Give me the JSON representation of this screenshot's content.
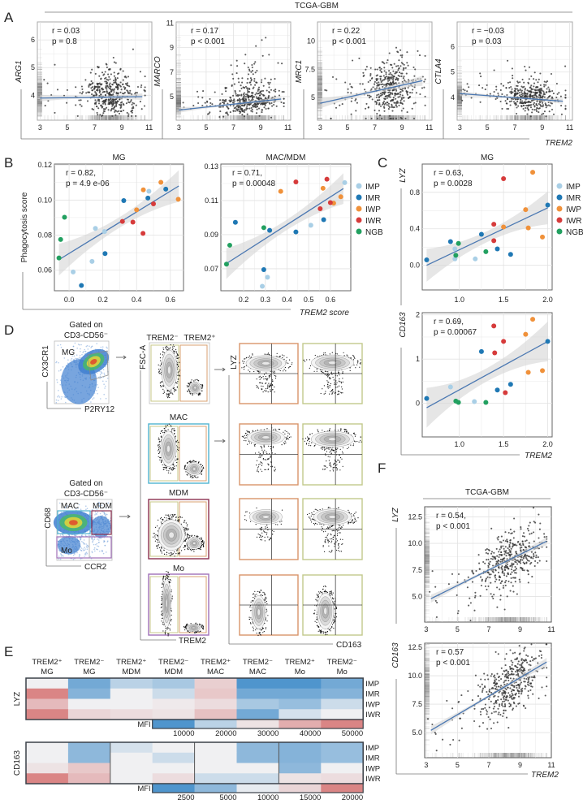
{
  "figure": {
    "panel_labels": [
      "A",
      "B",
      "C",
      "D",
      "E",
      "F"
    ]
  },
  "legend": {
    "groups": [
      {
        "label": "IMP",
        "color": "#a9cfe6"
      },
      {
        "label": "IMR",
        "color": "#1f78b4"
      },
      {
        "label": "IWP",
        "color": "#f0913a"
      },
      {
        "label": "IWR",
        "color": "#d63b3b"
      },
      {
        "label": "NGB",
        "color": "#22a060"
      }
    ]
  },
  "colors": {
    "trend": "#2f64a8",
    "band": "#d6d6d6",
    "heat_low": "#3d8bc9",
    "heat_mid": "#f0f0f2",
    "heat_high": "#d46a6a"
  },
  "panel_a": {
    "title": "TCGA-GBM",
    "xlabel": "TREM2"
  },
  "panel_b": {
    "xlabel": "TREM2 score",
    "ylabel": "Phagocytosis score"
  },
  "panel_c": {
    "xlabel": "TREM2"
  },
  "panel_f": {
    "title": "TCGA-GBM",
    "xlabel": "TREM2"
  },
  "chart_data": [
    {
      "id": "A-ARG1",
      "type": "scatter",
      "xlabel": "TREM2",
      "ylabel": "ARG1",
      "r": "r = 0.03",
      "p": "p = 0.8",
      "xlim": [
        2.8,
        11.2
      ],
      "ylim": [
        3.1,
        6.65
      ],
      "xticks": [
        "3",
        "5",
        "7",
        "9",
        "11"
      ],
      "yticks": [
        "4",
        "5",
        "6"
      ],
      "trend": [
        [
          3,
          3.9
        ],
        [
          10.5,
          3.95
        ]
      ],
      "band": 0.08,
      "point_cloud": {
        "x_mean": 8.3,
        "x_sd": 1.0,
        "y_sd": 0.35,
        "y_skew": 0.6
      }
    },
    {
      "id": "A-MARCO",
      "type": "scatter",
      "xlabel": "TREM2",
      "ylabel": "MARCO",
      "r": "r = 0.17",
      "p": "p < 0.001",
      "xlim": [
        2.8,
        11.2
      ],
      "ylim": [
        3.07,
        11.1
      ],
      "xticks": [
        "3",
        "5",
        "7",
        "9",
        "11"
      ],
      "yticks": [
        "5",
        "7",
        "9",
        "11"
      ],
      "trend": [
        [
          3,
          3.9
        ],
        [
          10.5,
          4.8
        ]
      ],
      "band": 0.15,
      "point_cloud": {
        "x_mean": 8.3,
        "x_sd": 1.0,
        "y_sd": 0.45,
        "y_skew": 1.8
      }
    },
    {
      "id": "A-MRC1",
      "type": "scatter",
      "xlabel": "TREM2",
      "ylabel": "MRC1",
      "r": "r = 0.22",
      "p": "p < 0.001",
      "xlim": [
        2.8,
        11.2
      ],
      "ylim": [
        3.0,
        11.7
      ],
      "xticks": [
        "3",
        "5",
        "7",
        "9",
        "11"
      ],
      "yticks": [
        "5",
        "7.5",
        "10"
      ],
      "trend": [
        [
          3,
          4.5
        ],
        [
          10.5,
          6.5
        ]
      ],
      "band": 0.3,
      "point_cloud": {
        "x_mean": 8.3,
        "x_sd": 1.0,
        "y_sd": 1.4,
        "y_skew": 0
      }
    },
    {
      "id": "A-CTLA4",
      "type": "scatter",
      "xlabel": "TREM2",
      "ylabel": "CTLA4",
      "r": "r = −0.03",
      "p": "p = 0.03",
      "xlim": [
        2.8,
        11.2
      ],
      "ylim": [
        3.1,
        6.98
      ],
      "xticks": [
        "3",
        "5",
        "7",
        "9",
        "11"
      ],
      "yticks": [
        "4",
        "5",
        "6"
      ],
      "trend": [
        [
          3,
          4.15
        ],
        [
          10.5,
          3.85
        ]
      ],
      "band": 0.07,
      "point_cloud": {
        "x_mean": 8.3,
        "x_sd": 1.0,
        "y_sd": 0.28,
        "y_skew": 0.4
      }
    },
    {
      "id": "B-MG",
      "type": "scatter",
      "title": "MG",
      "xlabel": "TREM2 score",
      "ylabel": "Phagocytosis score",
      "r": "r = 0.82,",
      "p": "p = 4.9 e-06",
      "xlim": [
        -0.087,
        0.678
      ],
      "ylim": [
        0.0483,
        0.1205
      ],
      "xticks": [
        "0.0",
        "0.2",
        "0.4",
        "0.6"
      ],
      "yticks": [
        "0.06",
        "0.08",
        "0.10",
        "0.12"
      ],
      "trend": [
        [
          -0.06,
          0.066
        ],
        [
          0.65,
          0.108
        ]
      ],
      "band": 0.006,
      "points": [
        {
          "g": "NGB",
          "x": -0.06,
          "y": 0.067
        },
        {
          "g": "NGB",
          "x": -0.05,
          "y": 0.0775
        },
        {
          "g": "NGB",
          "x": -0.027,
          "y": 0.0902
        },
        {
          "g": "IMP",
          "x": 0.024,
          "y": 0.059
        },
        {
          "g": "IMP",
          "x": 0.136,
          "y": 0.065
        },
        {
          "g": "IMP",
          "x": 0.156,
          "y": 0.0838
        },
        {
          "g": "IMP",
          "x": 0.473,
          "y": 0.105
        },
        {
          "g": "IMP",
          "x": 0.21,
          "y": 0.082
        },
        {
          "g": "IMR",
          "x": 0.073,
          "y": 0.0513
        },
        {
          "g": "IMR",
          "x": 0.213,
          "y": 0.0695
        },
        {
          "g": "IMR",
          "x": 0.324,
          "y": 0.0997
        },
        {
          "g": "IMR",
          "x": 0.467,
          "y": 0.1011
        },
        {
          "g": "IMR",
          "x": 0.573,
          "y": 0.1062
        },
        {
          "g": "IWP",
          "x": 0.44,
          "y": 0.1058
        },
        {
          "g": "IWP",
          "x": 0.4,
          "y": 0.0944
        },
        {
          "g": "IWP",
          "x": 0.544,
          "y": 0.1101
        },
        {
          "g": "IWP",
          "x": 0.647,
          "y": 0.1004
        },
        {
          "g": "IWR",
          "x": 0.316,
          "y": 0.0878
        },
        {
          "g": "IWR",
          "x": 0.378,
          "y": 0.0874
        },
        {
          "g": "IWR",
          "x": 0.438,
          "y": 0.081
        },
        {
          "g": "IWR",
          "x": 0.5,
          "y": 0.0978
        }
      ]
    },
    {
      "id": "B-MAC-MDM",
      "type": "scatter",
      "title": "MAC/MDM",
      "xlabel": "TREM2 score",
      "ylabel": "Phagocytosis score",
      "r": "r = 0.71,",
      "p": "p = 0.00048",
      "xlim": [
        0.095,
        0.694
      ],
      "ylim": [
        0.0571,
        0.1314
      ],
      "xticks": [
        "0.2",
        "0.3",
        "0.4",
        "0.5",
        "0.6"
      ],
      "yticks": [
        "0.07",
        "0.09",
        "0.11",
        "0.13"
      ],
      "trend": [
        [
          0.12,
          0.073
        ],
        [
          0.66,
          0.117
        ]
      ],
      "band": 0.006,
      "points": [
        {
          "g": "NGB",
          "x": 0.121,
          "y": 0.0727
        },
        {
          "g": "NGB",
          "x": 0.136,
          "y": 0.0838
        },
        {
          "g": "NGB",
          "x": 0.293,
          "y": 0.0941
        },
        {
          "g": "IMR",
          "x": 0.162,
          "y": 0.0972
        },
        {
          "g": "IMR",
          "x": 0.293,
          "y": 0.0695
        },
        {
          "g": "IMR",
          "x": 0.441,
          "y": 0.0916
        },
        {
          "g": "IMR",
          "x": 0.569,
          "y": 0.0988
        },
        {
          "g": "IMR",
          "x": 0.32,
          "y": 0.0925
        },
        {
          "g": "IMP",
          "x": 0.286,
          "y": 0.0597
        },
        {
          "g": "IMP",
          "x": 0.31,
          "y": 0.065
        },
        {
          "g": "IMP",
          "x": 0.51,
          "y": 0.0955
        },
        {
          "g": "IMP",
          "x": 0.666,
          "y": 0.1205
        },
        {
          "g": "IWP",
          "x": 0.371,
          "y": 0.1154
        },
        {
          "g": "IWP",
          "x": 0.566,
          "y": 0.1172
        },
        {
          "g": "IWP",
          "x": 0.648,
          "y": 0.1122
        },
        {
          "g": "IWP",
          "x": 0.615,
          "y": 0.1085
        },
        {
          "g": "IWR",
          "x": 0.441,
          "y": 0.1209
        },
        {
          "g": "IWR",
          "x": 0.584,
          "y": 0.1225
        },
        {
          "g": "IWR",
          "x": 0.553,
          "y": 0.1052
        },
        {
          "g": "IWR",
          "x": 0.6,
          "y": 0.1088
        }
      ]
    },
    {
      "id": "C-LYZ",
      "type": "scatter",
      "title": "MG",
      "xlabel": "TREM2",
      "ylabel": "LYZ",
      "r": "r = 0.63,",
      "p": "p = 0.0028",
      "xlim": [
        0.58,
        2.05
      ],
      "ylim": [
        -0.27,
        1.11
      ],
      "xticks": [
        "1.0",
        "1.5",
        "2.0"
      ],
      "yticks": [
        "0.0",
        "0.4",
        "0.8"
      ],
      "trend": [
        [
          0.63,
          0.0
        ],
        [
          2.0,
          0.63
        ]
      ],
      "band": 0.12,
      "points": [
        {
          "g": "IMR",
          "x": 0.63,
          "y": 0.059
        },
        {
          "g": "IMR",
          "x": 0.9,
          "y": 0.26
        },
        {
          "g": "IMR",
          "x": 1.25,
          "y": 0.34
        },
        {
          "g": "IMR",
          "x": 1.43,
          "y": 0.18
        },
        {
          "g": "IMR",
          "x": 1.58,
          "y": 0.12
        },
        {
          "g": "IMR",
          "x": 2.0,
          "y": 0.66
        },
        {
          "g": "IMP",
          "x": 0.95,
          "y": 0.18
        },
        {
          "g": "IMP",
          "x": 1.18,
          "y": 0.07
        },
        {
          "g": "IMP",
          "x": 0.95,
          "y": 0.07
        },
        {
          "g": "NGB",
          "x": 0.99,
          "y": 0.24
        },
        {
          "g": "NGB",
          "x": 0.96,
          "y": 0.11
        },
        {
          "g": "NGB",
          "x": 1.3,
          "y": 0.15
        },
        {
          "g": "IWR",
          "x": 1.5,
          "y": 0.95
        },
        {
          "g": "IWR",
          "x": 1.39,
          "y": 0.45
        },
        {
          "g": "IWR",
          "x": 1.39,
          "y": 0.27
        },
        {
          "g": "IWP",
          "x": 1.83,
          "y": 1.02
        },
        {
          "g": "IWP",
          "x": 1.75,
          "y": 0.61
        },
        {
          "g": "IWP",
          "x": 1.78,
          "y": 0.41
        },
        {
          "g": "IWP",
          "x": 1.94,
          "y": 0.31
        },
        {
          "g": "IWP",
          "x": 1.5,
          "y": 0.42
        }
      ]
    },
    {
      "id": "C-CD163",
      "type": "scatter",
      "xlabel": "TREM2",
      "ylabel": "CD163",
      "r": "r = 0.69,",
      "p": "p = 0.00067",
      "xlim": [
        0.58,
        2.05
      ],
      "ylim": [
        -0.76,
        2.05
      ],
      "xticks": [
        "1.0",
        "1.5",
        "2.0"
      ],
      "yticks": [
        "0",
        "1",
        "2"
      ],
      "trend": [
        [
          0.63,
          -0.1
        ],
        [
          2.0,
          1.4
        ]
      ],
      "band": 0.3,
      "points": [
        {
          "g": "IMR",
          "x": 0.63,
          "y": 0.11
        },
        {
          "g": "IMR",
          "x": 1.25,
          "y": 1.17
        },
        {
          "g": "IMR",
          "x": 1.43,
          "y": 0.3
        },
        {
          "g": "IMR",
          "x": 1.58,
          "y": 0.43
        },
        {
          "g": "IMR",
          "x": 2.0,
          "y": 1.4
        },
        {
          "g": "IMP",
          "x": 0.9,
          "y": 0.37
        },
        {
          "g": "IMP",
          "x": 1.17,
          "y": 0.04
        },
        {
          "g": "NGB",
          "x": 0.96,
          "y": 0.05
        },
        {
          "g": "NGB",
          "x": 0.99,
          "y": 0.02
        },
        {
          "g": "NGB",
          "x": 1.3,
          "y": 0.02
        },
        {
          "g": "IWR",
          "x": 1.39,
          "y": 1.75
        },
        {
          "g": "IWR",
          "x": 1.4,
          "y": 1.14
        },
        {
          "g": "IWR",
          "x": 1.5,
          "y": 1.4
        },
        {
          "g": "IWR",
          "x": 1.52,
          "y": 0.24
        },
        {
          "g": "IWP",
          "x": 1.83,
          "y": 1.9
        },
        {
          "g": "IWP",
          "x": 1.75,
          "y": 1.56
        },
        {
          "g": "IWP",
          "x": 1.78,
          "y": 0.7
        },
        {
          "g": "IWP",
          "x": 1.94,
          "y": 0.74
        }
      ]
    },
    {
      "id": "F-LYZ",
      "type": "scatter",
      "xlabel": "TREM2",
      "ylabel": "LYZ",
      "r": "r = 0.54,",
      "p": "p < 0.001",
      "xlim": [
        2.9,
        11.0
      ],
      "ylim": [
        2.6,
        13.44
      ],
      "xticks": [
        "3",
        "5",
        "7",
        "9",
        "11"
      ],
      "yticks": [
        "5.0",
        "7.5",
        "10.0",
        "12.5"
      ],
      "trend": [
        [
          3.3,
          4.8
        ],
        [
          10.7,
          10.2
        ]
      ],
      "band": 0.25,
      "point_cloud": {
        "x_mean": 8.4,
        "x_sd": 1.0,
        "y_sd": 1.3,
        "y_skew": 0
      }
    },
    {
      "id": "F-CD163",
      "type": "scatter",
      "xlabel": "TREM2",
      "ylabel": "CD163",
      "r": "r = 0.57",
      "p": "p < 0.001",
      "xlim": [
        2.9,
        11.0
      ],
      "ylim": [
        2.79,
        12.86
      ],
      "xticks": [
        "3",
        "5",
        "7",
        "9",
        "11"
      ],
      "yticks": [
        "5.0",
        "7.5",
        "10.0",
        "12.5"
      ],
      "trend": [
        [
          3.3,
          5.2
        ],
        [
          10.7,
          11.2
        ]
      ],
      "band": 0.25,
      "point_cloud": {
        "x_mean": 8.4,
        "x_sd": 1.0,
        "y_sd": 1.3,
        "y_skew": 0
      }
    }
  ],
  "panel_d": {
    "gate_title_1": "Gated on",
    "gate_title_2": "CD3-CD56⁻",
    "mg_plot": {
      "population": "MG",
      "xlabel": "P2RY12",
      "ylabel": "CX3CR1"
    },
    "cd68_plot": {
      "xlabel": "CCR2",
      "ylabel": "CD68",
      "gate_mac": "MAC",
      "gate_mdm": "MDM",
      "gate_mo": "Mo"
    },
    "trem2_gates": {
      "neg": "TREM2⁻",
      "pos": "TREM2⁺",
      "ylabel": "FSC-A",
      "xlabel": "TREM2"
    },
    "row_titles": {
      "mac": "MAC",
      "mdm": "MDM",
      "mo": "Mo"
    },
    "lyz_plots": {
      "ylabel": "LYZ",
      "xlabel": "CD163"
    }
  },
  "panel_e": {
    "columns": [
      {
        "top": "TREM2⁺",
        "bottom": "MG"
      },
      {
        "top": "TREM2⁻",
        "bottom": "MG"
      },
      {
        "top": "TREM2⁺",
        "bottom": "MDM"
      },
      {
        "top": "TREM2⁻",
        "bottom": "MDM"
      },
      {
        "top": "TREM2⁺",
        "bottom": "MAC"
      },
      {
        "top": "TREM2⁻",
        "bottom": "MAC"
      },
      {
        "top": "TREM2⁺",
        "bottom": "Mo"
      },
      {
        "top": "TREM2⁻",
        "bottom": "Mo"
      }
    ],
    "rows": [
      "IMP",
      "IMR",
      "IWP",
      "IWR"
    ],
    "heatmaps": [
      {
        "marker": "LYZ",
        "mfi_label": "MFI",
        "values": [
          [
            0,
            -0.7,
            -0.3,
            -0.4,
            0.25,
            -0.9,
            -0.9,
            -0.7
          ],
          [
            0.8,
            -0.6,
            0,
            -0.2,
            0.3,
            -0.7,
            -0.7,
            -0.6
          ],
          [
            0.4,
            0,
            0,
            0.05,
            0.15,
            -0.4,
            -0.5,
            -0.2
          ],
          [
            0.8,
            0.2,
            0.15,
            0.1,
            0.35,
            -0.7,
            -0.15,
            0
          ]
        ],
        "mfi_scale": [
          -0.9,
          -0.3,
          0.1,
          0.5,
          0.8
        ],
        "mfi_ticks": [
          "10000",
          "20000",
          "30000",
          "40000",
          "50000"
        ]
      },
      {
        "marker": "CD163",
        "mfi_label": "MFI",
        "values": [
          [
            0,
            -0.55,
            -0.15,
            0,
            0,
            -0.55,
            -0.6,
            -0.5
          ],
          [
            0,
            -0.55,
            0,
            -0.2,
            0,
            -0.55,
            -0.6,
            -0.5
          ],
          [
            0.1,
            0.3,
            0,
            0,
            0,
            0,
            -0.55,
            0
          ],
          [
            0.8,
            0.4,
            0,
            0.15,
            -0.2,
            -0.2,
            0.1,
            0.15
          ]
        ],
        "mfi_scale": [
          -0.9,
          -0.55,
          -0.05,
          0.2,
          0.8
        ],
        "mfi_ticks": [
          "2500",
          "5000",
          "10000",
          "15000",
          "20000"
        ]
      }
    ]
  }
}
